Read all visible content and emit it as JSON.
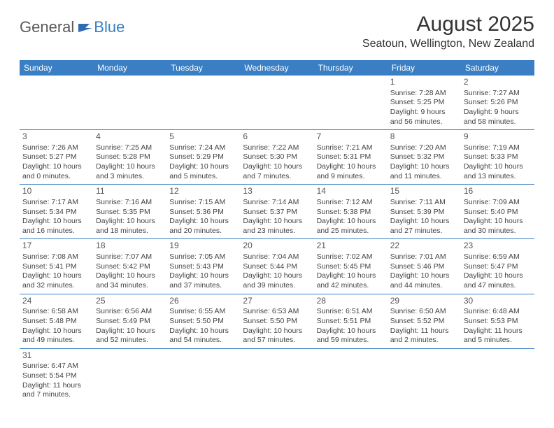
{
  "logo": {
    "text1": "General",
    "text2": "Blue"
  },
  "title": "August 2025",
  "location": "Seatoun, Wellington, New Zealand",
  "colors": {
    "header_bg": "#3a7fc4",
    "header_text": "#ffffff",
    "cell_border": "#3a7fc4",
    "body_text": "#444444",
    "logo_grey": "#5a5a5a",
    "logo_blue": "#3a7fc4",
    "page_bg": "#ffffff"
  },
  "day_headers": [
    "Sunday",
    "Monday",
    "Tuesday",
    "Wednesday",
    "Thursday",
    "Friday",
    "Saturday"
  ],
  "weeks": [
    [
      null,
      null,
      null,
      null,
      null,
      {
        "d": "1",
        "sr": "Sunrise: 7:28 AM",
        "ss": "Sunset: 5:25 PM",
        "dl": "Daylight: 9 hours and 56 minutes."
      },
      {
        "d": "2",
        "sr": "Sunrise: 7:27 AM",
        "ss": "Sunset: 5:26 PM",
        "dl": "Daylight: 9 hours and 58 minutes."
      }
    ],
    [
      {
        "d": "3",
        "sr": "Sunrise: 7:26 AM",
        "ss": "Sunset: 5:27 PM",
        "dl": "Daylight: 10 hours and 0 minutes."
      },
      {
        "d": "4",
        "sr": "Sunrise: 7:25 AM",
        "ss": "Sunset: 5:28 PM",
        "dl": "Daylight: 10 hours and 3 minutes."
      },
      {
        "d": "5",
        "sr": "Sunrise: 7:24 AM",
        "ss": "Sunset: 5:29 PM",
        "dl": "Daylight: 10 hours and 5 minutes."
      },
      {
        "d": "6",
        "sr": "Sunrise: 7:22 AM",
        "ss": "Sunset: 5:30 PM",
        "dl": "Daylight: 10 hours and 7 minutes."
      },
      {
        "d": "7",
        "sr": "Sunrise: 7:21 AM",
        "ss": "Sunset: 5:31 PM",
        "dl": "Daylight: 10 hours and 9 minutes."
      },
      {
        "d": "8",
        "sr": "Sunrise: 7:20 AM",
        "ss": "Sunset: 5:32 PM",
        "dl": "Daylight: 10 hours and 11 minutes."
      },
      {
        "d": "9",
        "sr": "Sunrise: 7:19 AM",
        "ss": "Sunset: 5:33 PM",
        "dl": "Daylight: 10 hours and 13 minutes."
      }
    ],
    [
      {
        "d": "10",
        "sr": "Sunrise: 7:17 AM",
        "ss": "Sunset: 5:34 PM",
        "dl": "Daylight: 10 hours and 16 minutes."
      },
      {
        "d": "11",
        "sr": "Sunrise: 7:16 AM",
        "ss": "Sunset: 5:35 PM",
        "dl": "Daylight: 10 hours and 18 minutes."
      },
      {
        "d": "12",
        "sr": "Sunrise: 7:15 AM",
        "ss": "Sunset: 5:36 PM",
        "dl": "Daylight: 10 hours and 20 minutes."
      },
      {
        "d": "13",
        "sr": "Sunrise: 7:14 AM",
        "ss": "Sunset: 5:37 PM",
        "dl": "Daylight: 10 hours and 23 minutes."
      },
      {
        "d": "14",
        "sr": "Sunrise: 7:12 AM",
        "ss": "Sunset: 5:38 PM",
        "dl": "Daylight: 10 hours and 25 minutes."
      },
      {
        "d": "15",
        "sr": "Sunrise: 7:11 AM",
        "ss": "Sunset: 5:39 PM",
        "dl": "Daylight: 10 hours and 27 minutes."
      },
      {
        "d": "16",
        "sr": "Sunrise: 7:09 AM",
        "ss": "Sunset: 5:40 PM",
        "dl": "Daylight: 10 hours and 30 minutes."
      }
    ],
    [
      {
        "d": "17",
        "sr": "Sunrise: 7:08 AM",
        "ss": "Sunset: 5:41 PM",
        "dl": "Daylight: 10 hours and 32 minutes."
      },
      {
        "d": "18",
        "sr": "Sunrise: 7:07 AM",
        "ss": "Sunset: 5:42 PM",
        "dl": "Daylight: 10 hours and 34 minutes."
      },
      {
        "d": "19",
        "sr": "Sunrise: 7:05 AM",
        "ss": "Sunset: 5:43 PM",
        "dl": "Daylight: 10 hours and 37 minutes."
      },
      {
        "d": "20",
        "sr": "Sunrise: 7:04 AM",
        "ss": "Sunset: 5:44 PM",
        "dl": "Daylight: 10 hours and 39 minutes."
      },
      {
        "d": "21",
        "sr": "Sunrise: 7:02 AM",
        "ss": "Sunset: 5:45 PM",
        "dl": "Daylight: 10 hours and 42 minutes."
      },
      {
        "d": "22",
        "sr": "Sunrise: 7:01 AM",
        "ss": "Sunset: 5:46 PM",
        "dl": "Daylight: 10 hours and 44 minutes."
      },
      {
        "d": "23",
        "sr": "Sunrise: 6:59 AM",
        "ss": "Sunset: 5:47 PM",
        "dl": "Daylight: 10 hours and 47 minutes."
      }
    ],
    [
      {
        "d": "24",
        "sr": "Sunrise: 6:58 AM",
        "ss": "Sunset: 5:48 PM",
        "dl": "Daylight: 10 hours and 49 minutes."
      },
      {
        "d": "25",
        "sr": "Sunrise: 6:56 AM",
        "ss": "Sunset: 5:49 PM",
        "dl": "Daylight: 10 hours and 52 minutes."
      },
      {
        "d": "26",
        "sr": "Sunrise: 6:55 AM",
        "ss": "Sunset: 5:50 PM",
        "dl": "Daylight: 10 hours and 54 minutes."
      },
      {
        "d": "27",
        "sr": "Sunrise: 6:53 AM",
        "ss": "Sunset: 5:50 PM",
        "dl": "Daylight: 10 hours and 57 minutes."
      },
      {
        "d": "28",
        "sr": "Sunrise: 6:51 AM",
        "ss": "Sunset: 5:51 PM",
        "dl": "Daylight: 10 hours and 59 minutes."
      },
      {
        "d": "29",
        "sr": "Sunrise: 6:50 AM",
        "ss": "Sunset: 5:52 PM",
        "dl": "Daylight: 11 hours and 2 minutes."
      },
      {
        "d": "30",
        "sr": "Sunrise: 6:48 AM",
        "ss": "Sunset: 5:53 PM",
        "dl": "Daylight: 11 hours and 5 minutes."
      }
    ],
    [
      {
        "d": "31",
        "sr": "Sunrise: 6:47 AM",
        "ss": "Sunset: 5:54 PM",
        "dl": "Daylight: 11 hours and 7 minutes."
      },
      null,
      null,
      null,
      null,
      null,
      null
    ]
  ]
}
